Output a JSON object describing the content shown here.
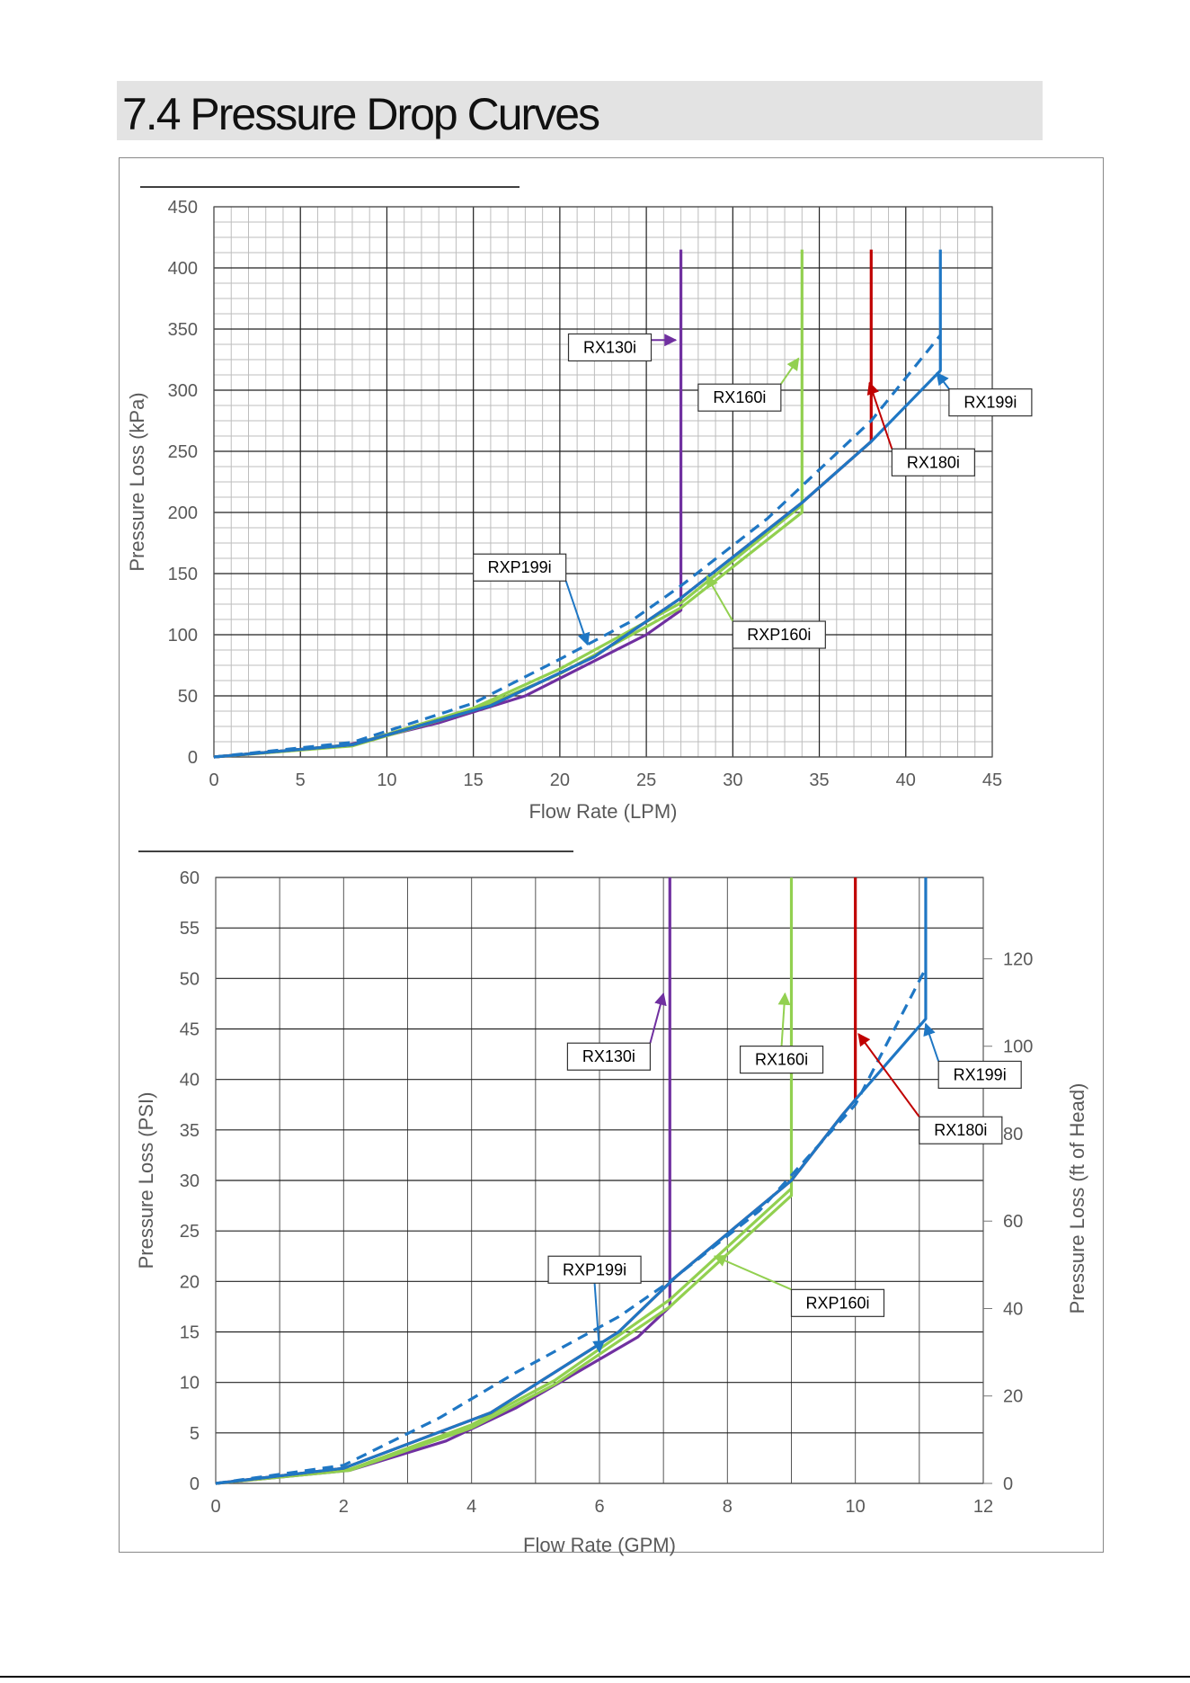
{
  "page": {
    "heading": "7.4 Pressure Drop Curves"
  },
  "colors": {
    "RX130i": "#7030a0",
    "RX160i": "#92d050",
    "RX180i": "#c00000",
    "RX199i": "#1f77c4",
    "RXP199i": "#1f77c4",
    "RXP160i": "#92d050"
  },
  "chart_data": [
    {
      "type": "line",
      "xlabel": "Flow Rate (LPM)",
      "ylabel": "Pressure Loss (kPa)",
      "xlim": [
        0,
        45
      ],
      "ylim": [
        0,
        450
      ],
      "xticks": [
        "0",
        "5",
        "10",
        "15",
        "20",
        "25",
        "30",
        "35",
        "40",
        "45"
      ],
      "yticks": [
        "0",
        "50",
        "100",
        "150",
        "200",
        "250",
        "300",
        "350",
        "400",
        "450"
      ],
      "grid": true,
      "minor_grid": true,
      "series": [
        {
          "name": "RX130i",
          "color": "#7030a0",
          "dashed": false,
          "x": [
            0,
            7.5,
            13,
            18,
            25,
            27,
            27
          ],
          "y": [
            0,
            9,
            28,
            50,
            100,
            120,
            415
          ]
        },
        {
          "name": "RX160i",
          "color": "#92d050",
          "dashed": false,
          "x": [
            0,
            8,
            15,
            20,
            27,
            34,
            34
          ],
          "y": [
            0,
            9,
            38,
            68,
            122,
            200,
            415
          ]
        },
        {
          "name": "RXP160i",
          "color": "#92d050",
          "dashed": false,
          "x": [
            0,
            8,
            15,
            20,
            27,
            34
          ],
          "y": [
            0,
            10,
            40,
            72,
            126,
            206
          ]
        },
        {
          "name": "RX180i",
          "color": "#c00000",
          "dashed": false,
          "x": [
            0,
            8,
            16,
            22,
            27,
            34,
            38,
            38
          ],
          "y": [
            0,
            10,
            42,
            82,
            130,
            208,
            258,
            415
          ]
        },
        {
          "name": "RX199i",
          "color": "#1f77c4",
          "dashed": false,
          "x": [
            0,
            8,
            16,
            22,
            27,
            34,
            38,
            42,
            42
          ],
          "y": [
            0,
            10,
            42,
            82,
            130,
            208,
            258,
            316,
            415
          ]
        },
        {
          "name": "RXP199i",
          "color": "#1f77c4",
          "dashed": true,
          "x": [
            0,
            8,
            15,
            20,
            24,
            27,
            32,
            38,
            42
          ],
          "y": [
            0,
            12,
            44,
            80,
            110,
            140,
            195,
            275,
            345
          ]
        }
      ],
      "annotations": [
        {
          "text": "RX130i",
          "box": [
            20.5,
            346
          ],
          "arrow_to": [
            26.7,
            341
          ]
        },
        {
          "text": "RX160i",
          "box": [
            28,
            305
          ],
          "arrow_to": [
            33.8,
            326
          ]
        },
        {
          "text": "RX199i",
          "box": [
            42.5,
            301
          ],
          "arrow_to": [
            41.8,
            314
          ]
        },
        {
          "text": "RX180i",
          "box": [
            39.2,
            252
          ],
          "arrow_to": [
            37.9,
            306
          ]
        },
        {
          "text": "RXP199i",
          "box": [
            15,
            166
          ],
          "arrow_to": [
            21.6,
            92
          ]
        },
        {
          "text": "RXP160i",
          "box": [
            30,
            111
          ],
          "arrow_to": [
            28.5,
            148
          ]
        }
      ]
    },
    {
      "type": "line",
      "xlabel": "Flow Rate (GPM)",
      "ylabel": "Pressure Loss (PSI)",
      "y2label": "Pressure Loss (ft of Head)",
      "xlim": [
        0,
        12
      ],
      "ylim": [
        0,
        60
      ],
      "y2lim": [
        0,
        138.6
      ],
      "xticks": [
        "0",
        "2",
        "4",
        "6",
        "8",
        "10",
        "12"
      ],
      "yticks": [
        "0",
        "5",
        "10",
        "15",
        "20",
        "25",
        "30",
        "35",
        "40",
        "45",
        "50",
        "55",
        "60"
      ],
      "y2ticks": [
        "0",
        "20",
        "40",
        "60",
        "80",
        "100",
        "120"
      ],
      "grid": true,
      "series": [
        {
          "name": "RX130i",
          "color": "#7030a0",
          "dashed": false,
          "x": [
            0,
            2.1,
            3.6,
            4.7,
            6.6,
            7.1,
            7.1
          ],
          "y": [
            0,
            1.3,
            4.2,
            7.5,
            14.5,
            17.5,
            60
          ]
        },
        {
          "name": "RX160i",
          "color": "#92d050",
          "dashed": false,
          "x": [
            0,
            2.1,
            4,
            5.3,
            7.1,
            9,
            9
          ],
          "y": [
            0,
            1.3,
            5.5,
            9.8,
            17.5,
            28.5,
            60
          ]
        },
        {
          "name": "RXP160i",
          "color": "#92d050",
          "dashed": false,
          "x": [
            0,
            2.1,
            4,
            5.3,
            7.1,
            9
          ],
          "y": [
            0,
            1.4,
            5.8,
            10.2,
            18.2,
            29.2
          ]
        },
        {
          "name": "RX180i",
          "color": "#c00000",
          "dashed": false,
          "x": [
            0,
            2,
            4.3,
            6.3,
            7.2,
            9,
            9.8,
            10,
            10
          ],
          "y": [
            0,
            1.5,
            7,
            15,
            20.5,
            30,
            36.5,
            38,
            60
          ]
        },
        {
          "name": "RX199i",
          "color": "#1f77c4",
          "dashed": false,
          "x": [
            0,
            2,
            4.3,
            6.3,
            7.2,
            9,
            9.8,
            10,
            11.1,
            11.1
          ],
          "y": [
            0,
            1.5,
            7,
            15,
            20.5,
            30,
            36.5,
            38,
            46,
            60
          ]
        },
        {
          "name": "RXP199i",
          "color": "#1f77c4",
          "dashed": true,
          "x": [
            0,
            2,
            3.5,
            4.7,
            6.3,
            7.1,
            8.5,
            10,
            11.1
          ],
          "y": [
            0,
            1.8,
            6.5,
            11,
            16.5,
            20,
            27,
            37.5,
            51
          ]
        }
      ],
      "annotations": [
        {
          "text": "RX130i",
          "box": [
            5.5,
            43.6
          ],
          "arrow_to": [
            7.0,
            48.5
          ]
        },
        {
          "text": "RX160i",
          "box": [
            8.2,
            43.3
          ],
          "arrow_to": [
            8.9,
            48.5
          ]
        },
        {
          "text": "RX199i",
          "box": [
            11.3,
            41.8
          ],
          "arrow_to": [
            11.1,
            45.5
          ]
        },
        {
          "text": "RX180i",
          "box": [
            11.0,
            36.3
          ],
          "arrow_to": [
            10.05,
            44.5
          ]
        },
        {
          "text": "RXP199i",
          "box": [
            5.2,
            22.5
          ],
          "arrow_to": [
            6.0,
            13
          ]
        },
        {
          "text": "RXP160i",
          "box": [
            9.0,
            19.2
          ],
          "arrow_to": [
            7.8,
            22.5
          ]
        }
      ]
    }
  ]
}
